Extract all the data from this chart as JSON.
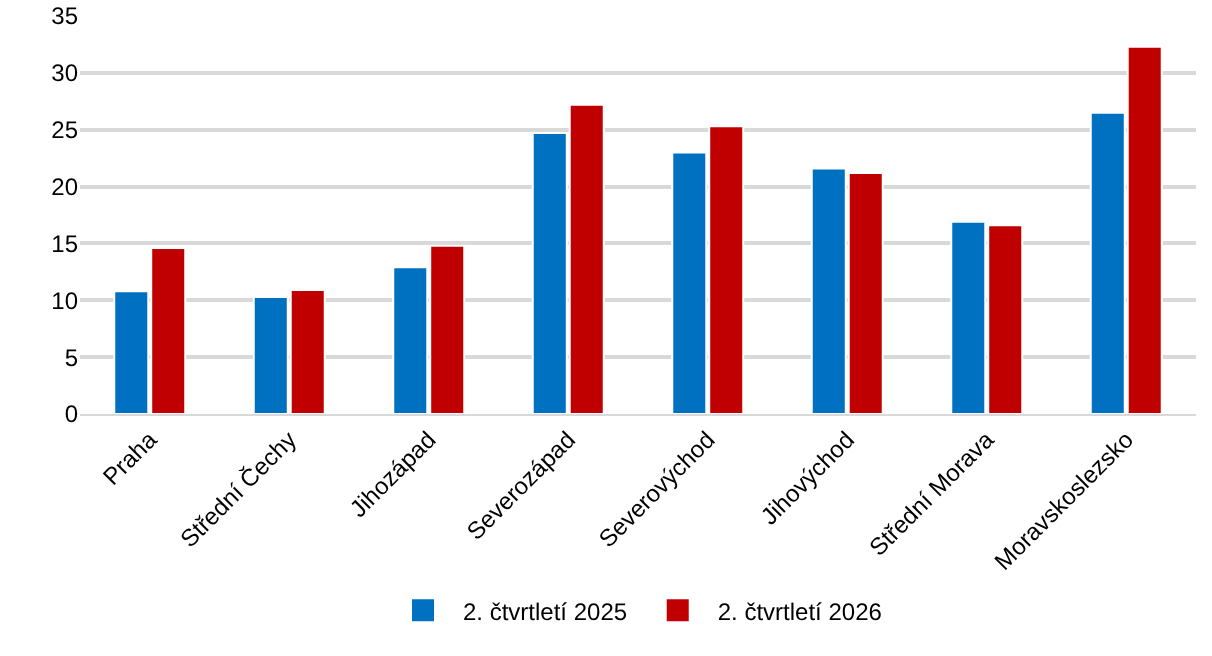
{
  "chart_data": {
    "type": "bar",
    "categories": [
      "Praha",
      "Střední Čechy",
      "Jihozápad",
      "Severozápad",
      "Severovýchod",
      "Jihovýchod",
      "Střední Morava",
      "Moravskoslezsko"
    ],
    "series": [
      {
        "name": "2. čtvrtletí 2025",
        "color": "#0070c0",
        "values": [
          10.8,
          10.3,
          12.9,
          24.7,
          23.0,
          21.6,
          16.9,
          26.5
        ]
      },
      {
        "name": "2. čtvrtletí 2026",
        "color": "#c00000",
        "values": [
          14.6,
          10.9,
          14.8,
          27.2,
          25.3,
          21.2,
          16.6,
          32.3
        ]
      }
    ],
    "ylim": [
      0,
      35
    ],
    "yticks": [
      0,
      5,
      10,
      15,
      20,
      25,
      30,
      35
    ],
    "grid": "y",
    "legend": "bottom"
  }
}
